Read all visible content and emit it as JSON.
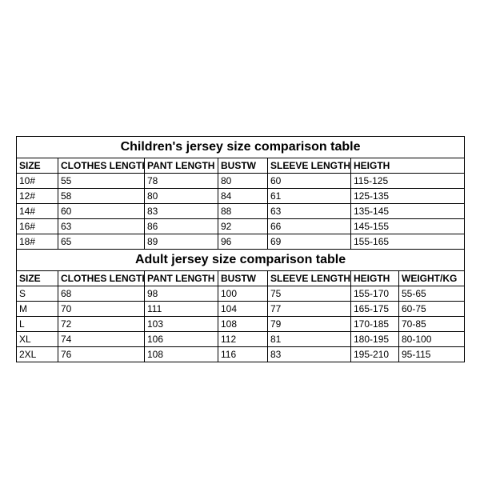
{
  "child": {
    "title": "Children's jersey size comparison table",
    "columns": [
      "SIZE",
      "CLOTHES LENGTH",
      "PANT LENGTH",
      "BUSTW",
      "SLEEVE LENGTH",
      "HEIGTH"
    ],
    "widths": [
      52,
      108,
      92,
      62,
      104,
      142
    ],
    "rows": [
      [
        "10#",
        "55",
        "78",
        "80",
        "60",
        "115-125"
      ],
      [
        "12#",
        "58",
        "80",
        "84",
        "61",
        "125-135"
      ],
      [
        "14#",
        "60",
        "83",
        "88",
        "63",
        "135-145"
      ],
      [
        "16#",
        "63",
        "86",
        "92",
        "66",
        "145-155"
      ],
      [
        "18#",
        "65",
        "89",
        "96",
        "69",
        "155-165"
      ]
    ],
    "header_fontsize": 12,
    "title_fontsize": 16,
    "border_color": "#000000",
    "background": "#ffffff",
    "text_color": "#000000"
  },
  "adult": {
    "title": "Adult jersey size comparison table",
    "columns": [
      "SIZE",
      "CLOTHES LENGTH",
      "PANT LENGTH",
      "BUSTW",
      "SLEEVE LENGTH",
      "HEIGTH",
      "WEIGHT/KG"
    ],
    "widths": [
      52,
      108,
      92,
      62,
      104,
      60,
      82
    ],
    "rows": [
      [
        "S",
        "68",
        "98",
        "100",
        "75",
        "155-170",
        "55-65"
      ],
      [
        "M",
        "70",
        "111",
        "104",
        "77",
        "165-175",
        "60-75"
      ],
      [
        "L",
        "72",
        "103",
        "108",
        "79",
        "170-185",
        "70-85"
      ],
      [
        "XL",
        "74",
        "106",
        "112",
        "81",
        "180-195",
        "80-100"
      ],
      [
        "2XL",
        "76",
        "108",
        "116",
        "83",
        "195-210",
        "95-115"
      ]
    ],
    "header_fontsize": 12,
    "title_fontsize": 16,
    "border_color": "#000000",
    "background": "#ffffff",
    "text_color": "#000000"
  }
}
